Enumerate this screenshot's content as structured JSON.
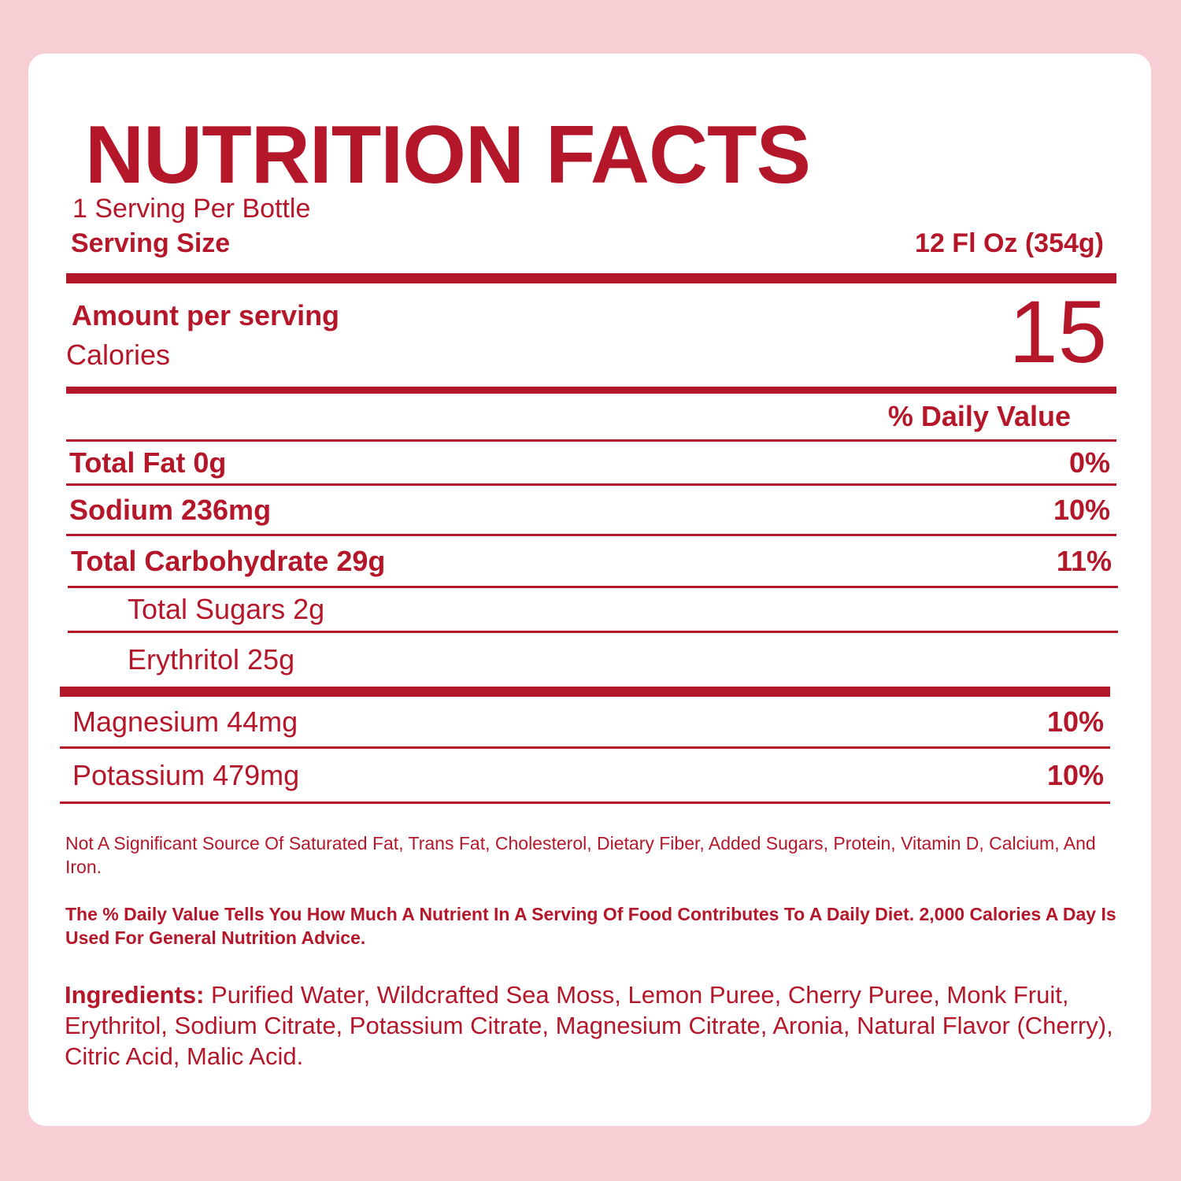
{
  "title": "NUTRITION FACTS",
  "servings": "1 Serving Per Bottle",
  "serving_size": {
    "label": "Serving Size",
    "value": "12 Fl Oz (354g)"
  },
  "calories": {
    "heading": "Amount per serving",
    "label": "Calories",
    "value": "15"
  },
  "daily_value_header": "% Daily Value",
  "nutrients": [
    {
      "label": "Total Fat 0g",
      "dv": "0%"
    },
    {
      "label": "Sodium 236mg",
      "dv": "10%"
    },
    {
      "label": "Total Carbohydrate 29g",
      "dv": "11%"
    },
    {
      "label": "Total Sugars 2g"
    },
    {
      "label": "Erythritol 25g"
    }
  ],
  "minerals": [
    {
      "label": "Magnesium 44mg",
      "dv": "10%"
    },
    {
      "label": "Potassium 479mg",
      "dv": "10%"
    }
  ],
  "footnote": "Not A Significant Source Of Saturated Fat, Trans Fat, Cholesterol, Dietary Fiber, Added Sugars, Protein, Vitamin D, Calcium, And Iron.",
  "daily_value_note": "The % Daily Value Tells You How Much A Nutrient In A Serving Of Food Contributes To A Daily Diet. 2,000 Calories A Day Is Used For General Nutrition Advice.",
  "ingredients": {
    "label": "Ingredients:",
    "text": "Purified Water, Wildcrafted Sea Moss, Lemon Puree, Cherry Puree, Monk Fruit, Erythritol, Sodium Citrate, Potassium Citrate, Magnesium Citrate, Aronia, Natural Flavor (Cherry), Citric Acid, Malic Acid."
  }
}
